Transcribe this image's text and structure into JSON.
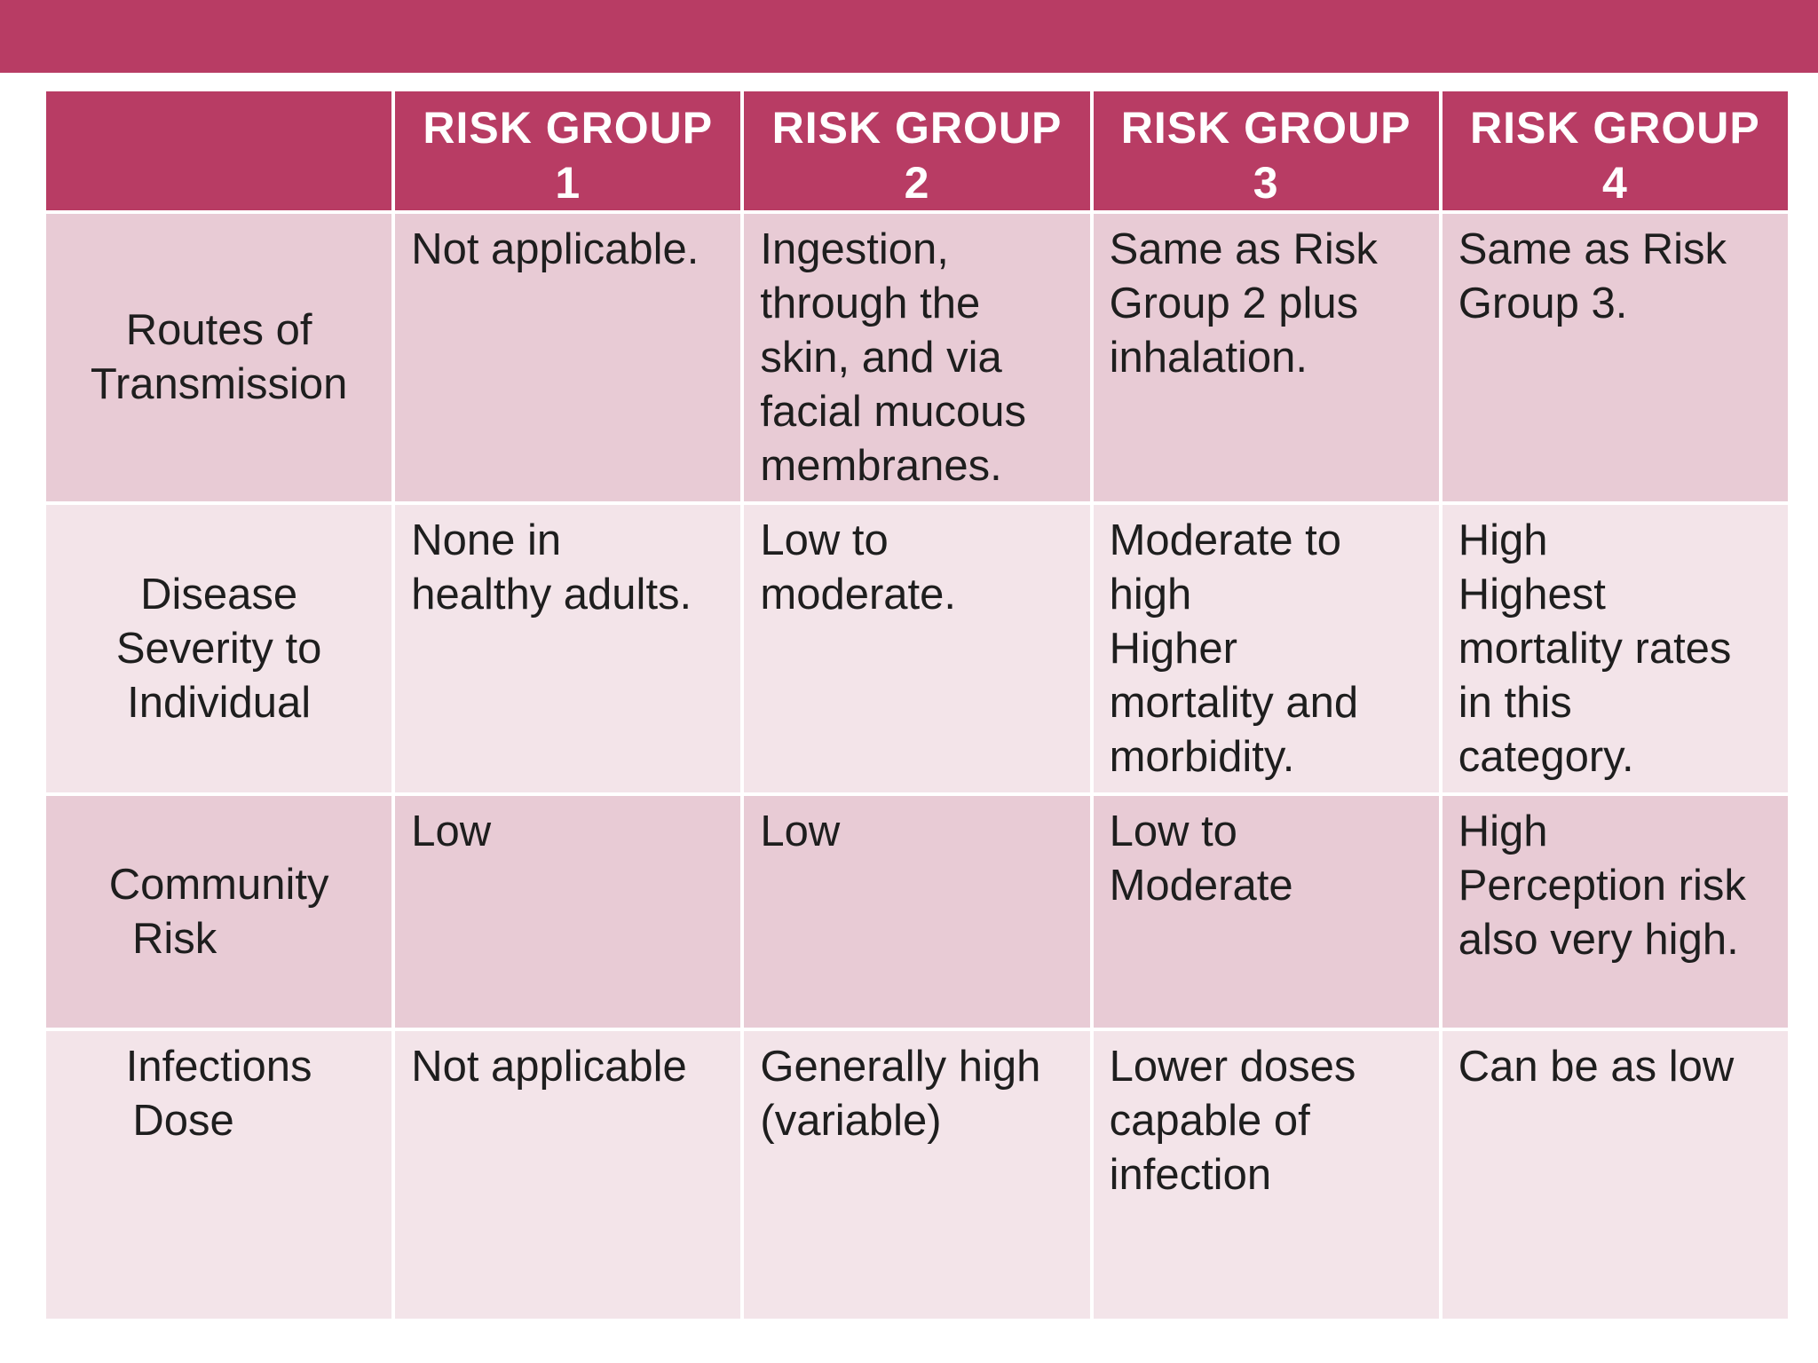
{
  "colors": {
    "accent": "#b83c64",
    "row_dark": "#e8cbd5",
    "row_light": "#f3e4e9"
  },
  "header": {
    "columns": [
      "",
      [
        "RISK GROUP",
        "1"
      ],
      [
        "RISK GROUP",
        "2"
      ],
      [
        "RISK GROUP",
        "3"
      ],
      [
        "RISK GROUP",
        "4"
      ]
    ]
  },
  "rows": [
    {
      "label": [
        "Routes of",
        "Transmission"
      ],
      "cells": [
        [
          "Not applicable."
        ],
        [
          "Ingestion,",
          "through the",
          "skin, and via",
          "facial mucous",
          "membranes."
        ],
        [
          "Same as Risk",
          "Group 2 plus",
          "inhalation."
        ],
        [
          "Same as Risk",
          "Group 3."
        ]
      ]
    },
    {
      "label": [
        "Disease",
        "Severity to",
        "Individual"
      ],
      "cells": [
        [
          "None in",
          "healthy adults."
        ],
        [
          "Low to",
          "moderate."
        ],
        [
          "Moderate to",
          "high",
          "Higher",
          "mortality and",
          "morbidity."
        ],
        [
          "High",
          "Highest",
          "mortality rates",
          "in this",
          "category."
        ]
      ]
    },
    {
      "label": [
        "Community",
        "Risk"
      ],
      "cells": [
        [
          "Low"
        ],
        [
          "Low"
        ],
        [
          "Low to",
          "Moderate"
        ],
        [
          "High",
          "Perception risk",
          "also very high."
        ]
      ]
    },
    {
      "label": [
        "Infections",
        "Dose"
      ],
      "cells": [
        [
          "Not applicable"
        ],
        [
          "Generally high",
          "(variable)"
        ],
        [
          "Lower doses",
          "capable of",
          "infection"
        ],
        [
          "Can be as low"
        ]
      ]
    }
  ]
}
